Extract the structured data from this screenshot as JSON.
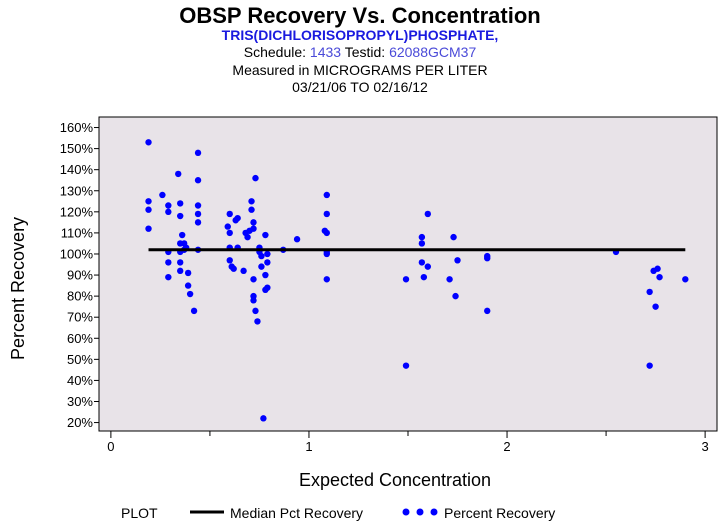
{
  "header": {
    "title": "OBSP Recovery Vs. Concentration",
    "compound": "TRIS(DICHLORISOPROPYL)PHOSPHATE,",
    "schedule_label": "Schedule:",
    "schedule_value": "1433",
    "testid_label": "Testid:",
    "testid_value": "62088GCM37",
    "measured": "Measured in  MICROGRAMS PER LITER",
    "date_range": "03/21/06 TO 02/16/12"
  },
  "legend": {
    "plot_label": "PLOT",
    "median_label": "Median Pct Recovery",
    "points_label": "Percent Recovery"
  },
  "colors": {
    "points": "#0000ff",
    "median": "#000000",
    "plot_bg": "#e8e3e8",
    "compound_text": "#1a1adf",
    "ids_text": "#4a4ad8"
  },
  "chart_data": {
    "type": "scatter",
    "title": "OBSP Recovery Vs. Concentration",
    "xlabel": "Expected Concentration",
    "ylabel": "Percent Recovery",
    "xlim": [
      -0.06,
      3.06
    ],
    "ylim": [
      16,
      165
    ],
    "x_ticks": [
      0,
      1,
      2,
      3
    ],
    "x_minor_ticks": [
      0.5,
      1.5,
      2.5
    ],
    "y_ticks": [
      20,
      30,
      40,
      50,
      60,
      70,
      80,
      90,
      100,
      110,
      120,
      130,
      140,
      150,
      160
    ],
    "y_tick_format": "{v}%",
    "median": {
      "name": "Median Pct Recovery",
      "value": 102,
      "x_range": [
        0.19,
        2.9
      ]
    },
    "series": [
      {
        "name": "Percent Recovery",
        "points": [
          [
            0.19,
            153
          ],
          [
            0.19,
            125
          ],
          [
            0.19,
            121
          ],
          [
            0.19,
            112
          ],
          [
            0.26,
            128
          ],
          [
            0.29,
            123
          ],
          [
            0.29,
            120
          ],
          [
            0.29,
            101
          ],
          [
            0.29,
            96
          ],
          [
            0.29,
            89
          ],
          [
            0.34,
            138
          ],
          [
            0.35,
            124
          ],
          [
            0.35,
            118
          ],
          [
            0.35,
            105
          ],
          [
            0.35,
            101
          ],
          [
            0.35,
            96
          ],
          [
            0.35,
            92
          ],
          [
            0.36,
            109
          ],
          [
            0.37,
            105
          ],
          [
            0.37,
            102
          ],
          [
            0.38,
            103
          ],
          [
            0.39,
            91
          ],
          [
            0.39,
            85
          ],
          [
            0.4,
            81
          ],
          [
            0.42,
            73
          ],
          [
            0.44,
            148
          ],
          [
            0.44,
            135
          ],
          [
            0.44,
            123
          ],
          [
            0.44,
            119
          ],
          [
            0.44,
            115
          ],
          [
            0.44,
            102
          ],
          [
            0.59,
            113
          ],
          [
            0.6,
            119
          ],
          [
            0.6,
            110
          ],
          [
            0.6,
            103
          ],
          [
            0.6,
            97
          ],
          [
            0.61,
            94
          ],
          [
            0.62,
            93
          ],
          [
            0.63,
            116
          ],
          [
            0.64,
            117
          ],
          [
            0.64,
            103
          ],
          [
            0.67,
            92
          ],
          [
            0.68,
            110
          ],
          [
            0.69,
            108
          ],
          [
            0.7,
            111
          ],
          [
            0.71,
            125
          ],
          [
            0.71,
            121
          ],
          [
            0.72,
            115
          ],
          [
            0.72,
            112
          ],
          [
            0.72,
            88
          ],
          [
            0.72,
            80
          ],
          [
            0.72,
            78
          ],
          [
            0.73,
            136
          ],
          [
            0.73,
            73
          ],
          [
            0.74,
            68
          ],
          [
            0.75,
            103
          ],
          [
            0.75,
            101
          ],
          [
            0.76,
            99
          ],
          [
            0.76,
            94
          ],
          [
            0.77,
            22
          ],
          [
            0.78,
            109
          ],
          [
            0.78,
            90
          ],
          [
            0.79,
            100
          ],
          [
            0.79,
            96
          ],
          [
            0.79,
            84
          ],
          [
            0.78,
            83
          ],
          [
            0.87,
            102
          ],
          [
            0.94,
            107
          ],
          [
            1.09,
            128
          ],
          [
            1.09,
            119
          ],
          [
            1.08,
            111
          ],
          [
            1.09,
            110
          ],
          [
            1.09,
            101
          ],
          [
            1.09,
            100
          ],
          [
            1.09,
            88
          ],
          [
            1.49,
            88
          ],
          [
            1.49,
            47
          ],
          [
            1.57,
            108
          ],
          [
            1.57,
            105
          ],
          [
            1.57,
            96
          ],
          [
            1.58,
            89
          ],
          [
            1.6,
            119
          ],
          [
            1.6,
            94
          ],
          [
            1.71,
            88
          ],
          [
            1.73,
            108
          ],
          [
            1.74,
            80
          ],
          [
            1.75,
            97
          ],
          [
            1.9,
            99
          ],
          [
            1.9,
            98
          ],
          [
            1.9,
            73
          ],
          [
            2.55,
            101
          ],
          [
            2.72,
            82
          ],
          [
            2.72,
            47
          ],
          [
            2.74,
            92
          ],
          [
            2.75,
            75
          ],
          [
            2.76,
            93
          ],
          [
            2.77,
            89
          ],
          [
            2.9,
            88
          ]
        ]
      }
    ]
  }
}
